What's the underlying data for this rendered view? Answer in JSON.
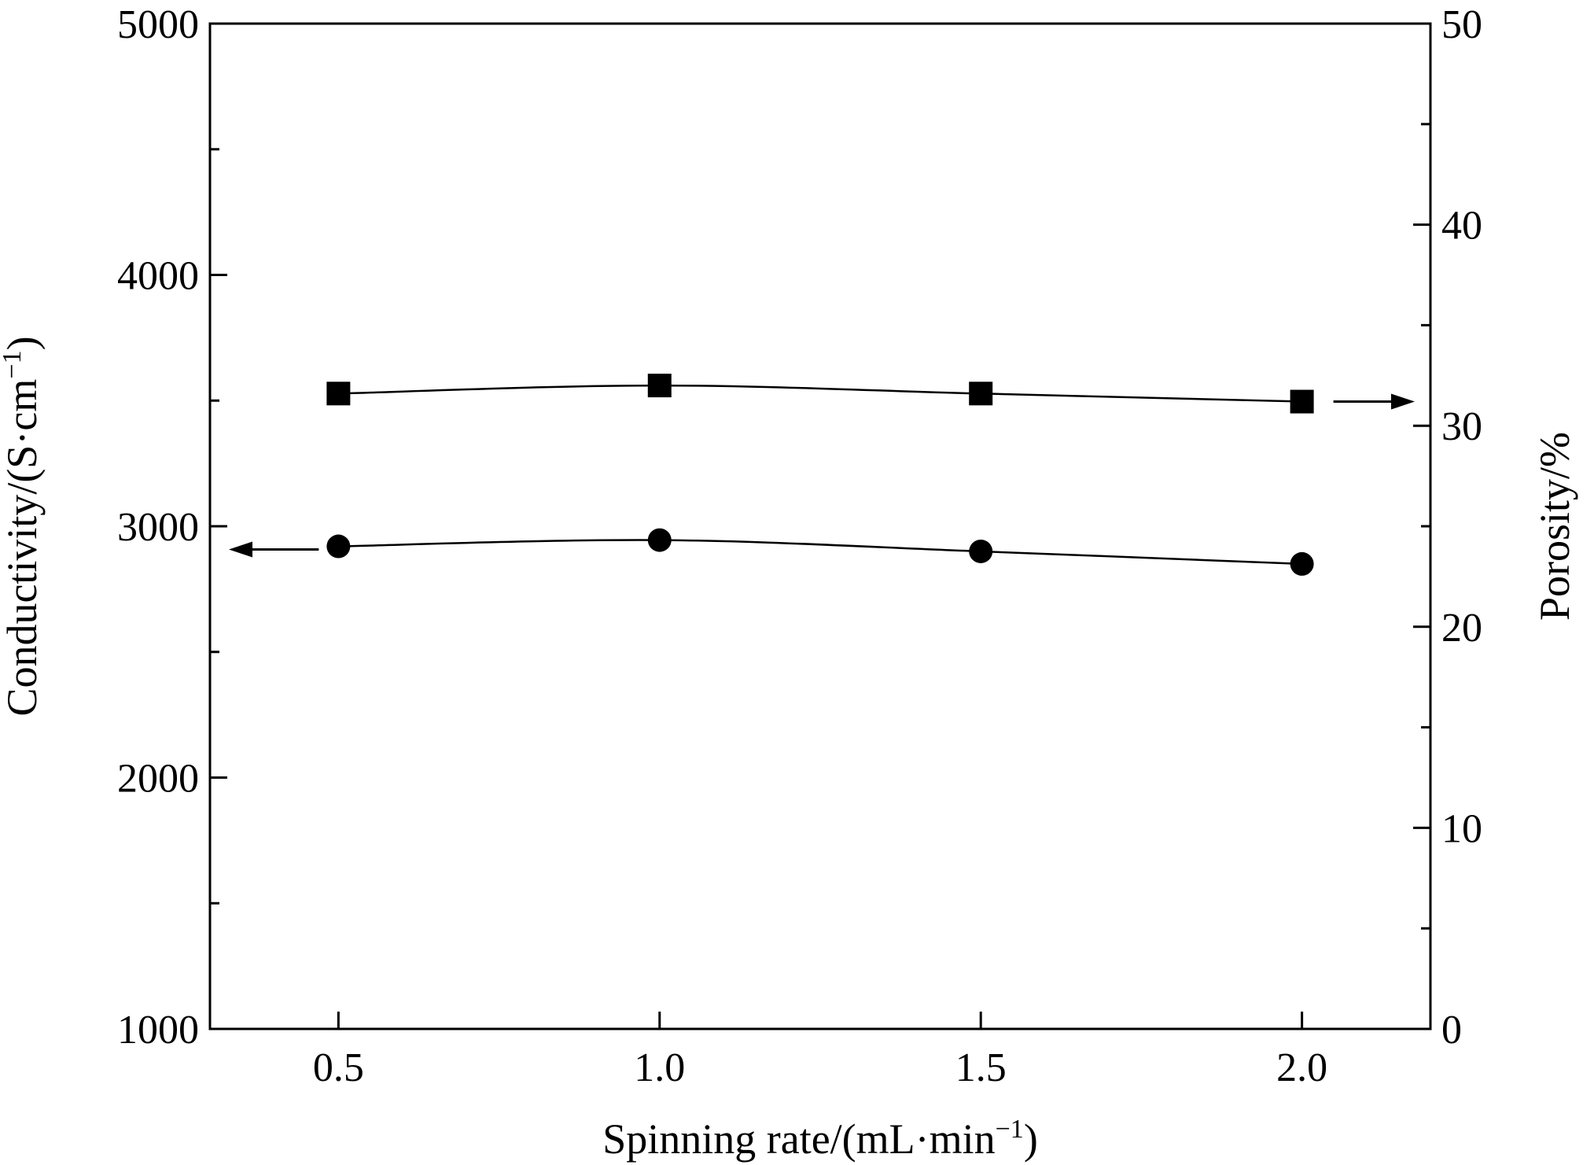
{
  "chart_data": {
    "type": "line",
    "x": [
      0.5,
      1.0,
      1.5,
      2.0
    ],
    "x_tick_labels": [
      "0.5",
      "1.0",
      "1.5",
      "2.0"
    ],
    "xlim": [
      0.3,
      2.2
    ],
    "xlabel": "Spinning rate/(mL·min",
    "xlabel_sup": "−1",
    "xlabel_suffix": ")",
    "left_axis": {
      "label": "Conductivity/(S·cm",
      "label_sup": "−1",
      "label_suffix": ")",
      "ylim": [
        1000,
        5000
      ],
      "major_ticks": [
        1000,
        2000,
        3000,
        4000,
        5000
      ],
      "major_tick_labels": [
        "1000",
        "2000",
        "3000",
        "4000",
        "5000"
      ],
      "minor_ticks": [
        1500,
        2500,
        3500,
        4500
      ]
    },
    "right_axis": {
      "label": "Porosity/%",
      "ylim": [
        0,
        50
      ],
      "major_ticks": [
        0,
        10,
        20,
        30,
        40,
        50
      ],
      "major_tick_labels": [
        "0",
        "10",
        "20",
        "30",
        "40",
        "50"
      ],
      "minor_ticks": [
        5,
        15,
        25,
        35,
        45
      ]
    },
    "series": [
      {
        "axis": "left",
        "marker": "circle",
        "values": [
          2920,
          2945,
          2900,
          2850
        ],
        "arrow_direction": "left"
      },
      {
        "axis": "right",
        "marker": "square",
        "values": [
          31.6,
          32.0,
          31.6,
          31.2
        ],
        "arrow_direction": "right"
      }
    ],
    "grid": false,
    "colors": {
      "ink": "#000000",
      "background": "#ffffff"
    }
  }
}
